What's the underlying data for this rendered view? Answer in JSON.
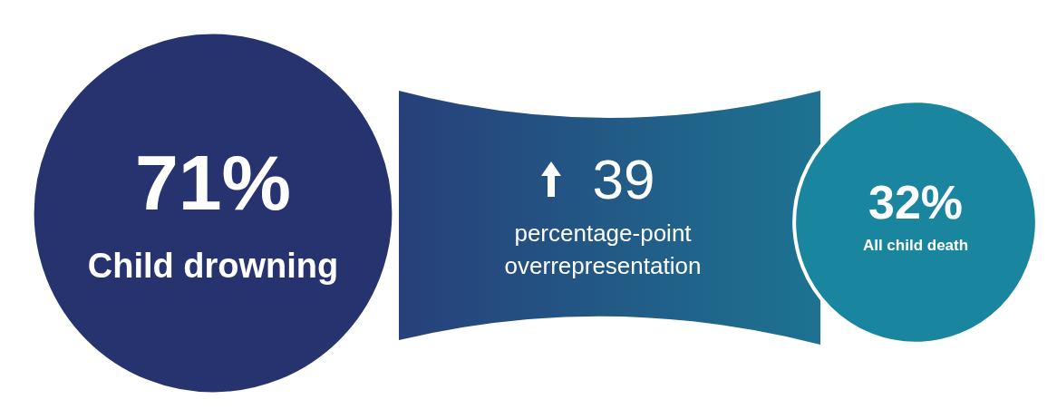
{
  "chart_data": {
    "type": "other",
    "categories": [
      "Child drowning",
      "All child death"
    ],
    "values": [
      71,
      32
    ],
    "value_labels": [
      "71%",
      "32%"
    ],
    "colors": [
      "#27336e",
      "#1a859e"
    ],
    "annotations": [
      "39",
      "percentage-point overrepresentation"
    ]
  }
}
